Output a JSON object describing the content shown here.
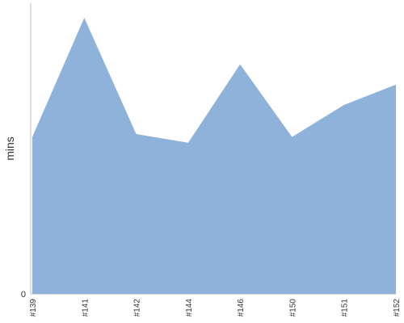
{
  "chart_data": {
    "type": "area",
    "title": "",
    "xlabel": "",
    "ylabel": "mins",
    "categories": [
      "#139",
      "#141",
      "#142",
      "#144",
      "#146",
      "#150",
      "#151",
      "#152"
    ],
    "x_tick_labels": [
      "#139",
      "#141",
      "#142",
      "#144",
      "#146",
      "#150",
      "#151",
      "#152"
    ],
    "y_tick_labels": [
      "0"
    ],
    "series": [
      {
        "values": [
          54,
          95,
          55,
          52,
          79,
          54,
          65,
          72
        ]
      }
    ],
    "ylim": [
      0,
      100
    ],
    "grid": false,
    "legend": "none",
    "colors": {
      "fill": "#8fb2db",
      "axis": "#bdbdbd"
    }
  }
}
